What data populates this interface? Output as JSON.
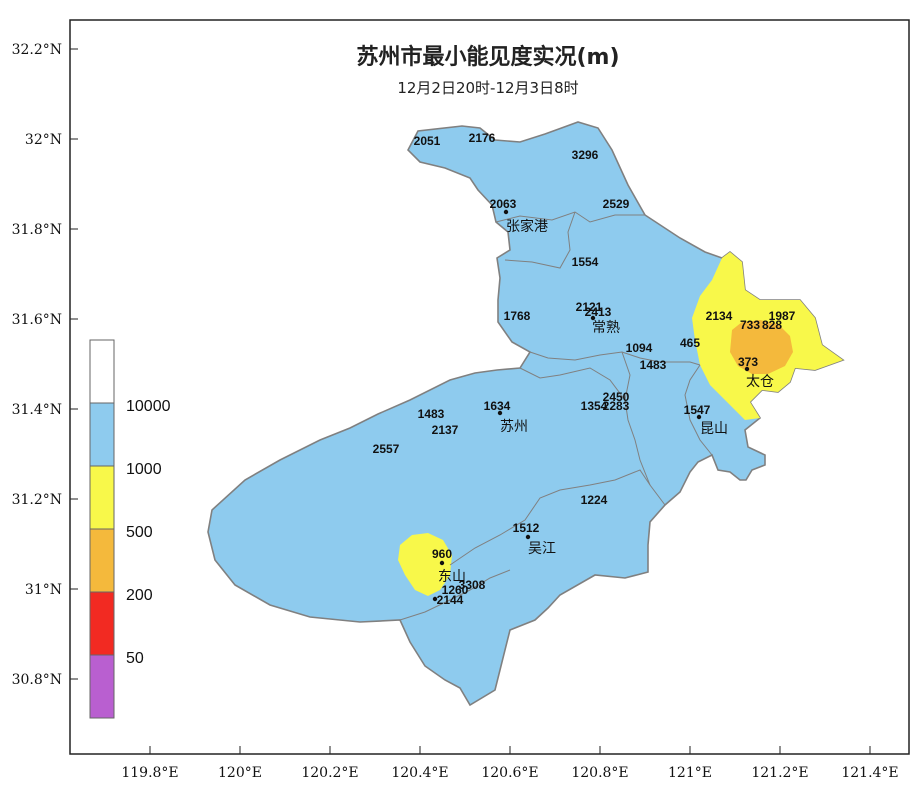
{
  "title": "苏州市最小能见度实况(m)",
  "subtitle": "12月2日20时-12月3日8时",
  "colors": {
    "level_50": "#b95fd0",
    "level_200": "#f22a22",
    "level_500": "#f4b93c",
    "level_1000": "#f8f84a",
    "level_10000": "#8ecbee",
    "level_top": "#ffffff",
    "border": "#808080"
  },
  "y_ticks": [
    "32.2°N",
    "32°N",
    "31.8°N",
    "31.6°N",
    "31.4°N",
    "31.2°N",
    "31°N",
    "30.8°N"
  ],
  "x_ticks": [
    "119.8°E",
    "120°E",
    "120.2°E",
    "120.4°E",
    "120.6°E",
    "120.8°E",
    "121°E",
    "121.2°E",
    "121.4°E"
  ],
  "legend": [
    "10000",
    "1000",
    "500",
    "200",
    "50"
  ],
  "cities": [
    "张家港",
    "常熟",
    "太仓",
    "昆山",
    "苏州",
    "吴江",
    "东山"
  ],
  "stations": [
    "2051",
    "2176",
    "3296",
    "2063",
    "2529",
    "1554",
    "2121",
    "2413",
    "1768",
    "2134",
    "733",
    "828",
    "1987",
    "1094",
    "465",
    "1483",
    "373",
    "2450",
    "1354",
    "2283",
    "1547",
    "1483",
    "1634",
    "2137",
    "2557",
    "1224",
    "1512",
    "960",
    "1260",
    "3308",
    "2144"
  ]
}
